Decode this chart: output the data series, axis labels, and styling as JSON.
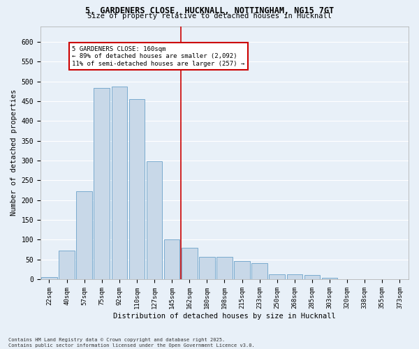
{
  "title_line1": "5, GARDENERS CLOSE, HUCKNALL, NOTTINGHAM, NG15 7GT",
  "title_line2": "Size of property relative to detached houses in Hucknall",
  "xlabel": "Distribution of detached houses by size in Hucknall",
  "ylabel": "Number of detached properties",
  "bar_labels": [
    "22sqm",
    "40sqm",
    "57sqm",
    "75sqm",
    "92sqm",
    "110sqm",
    "127sqm",
    "145sqm",
    "162sqm",
    "180sqm",
    "198sqm",
    "215sqm",
    "233sqm",
    "250sqm",
    "268sqm",
    "285sqm",
    "303sqm",
    "320sqm",
    "338sqm",
    "355sqm",
    "373sqm"
  ],
  "bar_values": [
    5,
    73,
    222,
    483,
    487,
    455,
    298,
    100,
    79,
    56,
    56,
    45,
    40,
    12,
    12,
    10,
    3,
    0,
    0,
    0,
    0
  ],
  "bar_color": "#c8d8e8",
  "bar_edgecolor": "#7aabcf",
  "vline_pos": 7.5,
  "vline_color": "#cc0000",
  "annotation_text": "5 GARDENERS CLOSE: 160sqm\n← 89% of detached houses are smaller (2,092)\n11% of semi-detached houses are larger (257) →",
  "annotation_box_color": "#cc0000",
  "annotation_bg": "#ffffff",
  "bg_color": "#e8f0f8",
  "grid_color": "#ffffff",
  "footer_text": "Contains HM Land Registry data © Crown copyright and database right 2025.\nContains public sector information licensed under the Open Government Licence v3.0.",
  "ylim": [
    0,
    640
  ],
  "yticks": [
    0,
    50,
    100,
    150,
    200,
    250,
    300,
    350,
    400,
    450,
    500,
    550,
    600
  ]
}
